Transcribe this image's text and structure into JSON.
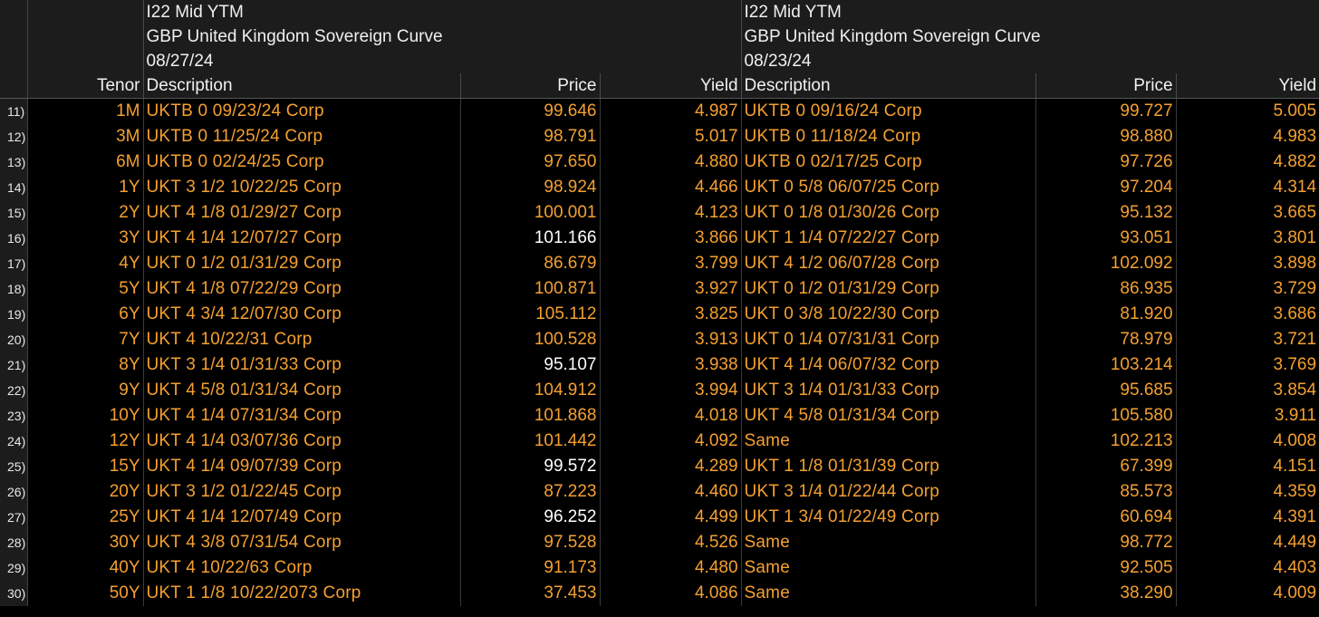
{
  "left_curve": {
    "title": "I22 Mid YTM",
    "subtitle": "GBP United Kingdom Sovereign Curve",
    "date": "08/27/24"
  },
  "right_curve": {
    "title": "I22 Mid YTM",
    "subtitle": "GBP United Kingdom Sovereign Curve",
    "date": "08/23/24"
  },
  "columns": {
    "tenor": "Tenor",
    "description_left": "Description",
    "price_left": "Price",
    "yield_left": "Yield",
    "description_right": "Description",
    "price_right": "Price",
    "yield_right": "Yield"
  },
  "colors": {
    "orange": "#f5a030",
    "white": "#ffffff",
    "header_bg": "#1c1c1c"
  },
  "rows": [
    {
      "num": "11)",
      "tenor": "1M",
      "ldesc": "UKTB 0 09/23/24 Corp",
      "lprice": "99.646",
      "lprice_white": false,
      "lyield": "4.987",
      "rdesc": "UKTB 0 09/16/24 Corp",
      "rprice": "99.727",
      "ryield": "5.005"
    },
    {
      "num": "12)",
      "tenor": "3M",
      "ldesc": "UKTB 0 11/25/24 Corp",
      "lprice": "98.791",
      "lprice_white": false,
      "lyield": "5.017",
      "rdesc": "UKTB 0 11/18/24 Corp",
      "rprice": "98.880",
      "ryield": "4.983"
    },
    {
      "num": "13)",
      "tenor": "6M",
      "ldesc": "UKTB 0 02/24/25 Corp",
      "lprice": "97.650",
      "lprice_white": false,
      "lyield": "4.880",
      "rdesc": "UKTB 0 02/17/25 Corp",
      "rprice": "97.726",
      "ryield": "4.882"
    },
    {
      "num": "14)",
      "tenor": "1Y",
      "ldesc": "UKT 3  1/2  10/22/25 Corp",
      "lprice": "98.924",
      "lprice_white": false,
      "lyield": "4.466",
      "rdesc": "UKT 0  5/8  06/07/25 Corp",
      "rprice": "97.204",
      "ryield": "4.314"
    },
    {
      "num": "15)",
      "tenor": "2Y",
      "ldesc": "UKT 4  1/8  01/29/27 Corp",
      "lprice": "100.001",
      "lprice_white": false,
      "lyield": "4.123",
      "rdesc": "UKT 0  1/8  01/30/26 Corp",
      "rprice": "95.132",
      "ryield": "3.665"
    },
    {
      "num": "16)",
      "tenor": "3Y",
      "ldesc": "UKT 4  1/4  12/07/27 Corp",
      "lprice": "101.166",
      "lprice_white": true,
      "lyield": "3.866",
      "rdesc": "UKT 1  1/4  07/22/27 Corp",
      "rprice": "93.051",
      "ryield": "3.801"
    },
    {
      "num": "17)",
      "tenor": "4Y",
      "ldesc": "UKT 0  1/2  01/31/29 Corp",
      "lprice": "86.679",
      "lprice_white": false,
      "lyield": "3.799",
      "rdesc": "UKT 4  1/2  06/07/28 Corp",
      "rprice": "102.092",
      "ryield": "3.898"
    },
    {
      "num": "18)",
      "tenor": "5Y",
      "ldesc": "UKT 4  1/8  07/22/29 Corp",
      "lprice": "100.871",
      "lprice_white": false,
      "lyield": "3.927",
      "rdesc": "UKT 0  1/2  01/31/29 Corp",
      "rprice": "86.935",
      "ryield": "3.729"
    },
    {
      "num": "19)",
      "tenor": "6Y",
      "ldesc": "UKT 4  3/4  12/07/30 Corp",
      "lprice": "105.112",
      "lprice_white": false,
      "lyield": "3.825",
      "rdesc": "UKT 0  3/8  10/22/30 Corp",
      "rprice": "81.920",
      "ryield": "3.686"
    },
    {
      "num": "20)",
      "tenor": "7Y",
      "ldesc": "UKT 4 10/22/31 Corp",
      "lprice": "100.528",
      "lprice_white": false,
      "lyield": "3.913",
      "rdesc": "UKT 0  1/4  07/31/31 Corp",
      "rprice": "78.979",
      "ryield": "3.721"
    },
    {
      "num": "21)",
      "tenor": "8Y",
      "ldesc": "UKT 3  1/4  01/31/33 Corp",
      "lprice": "95.107",
      "lprice_white": true,
      "lyield": "3.938",
      "rdesc": "UKT 4  1/4  06/07/32 Corp",
      "rprice": "103.214",
      "ryield": "3.769"
    },
    {
      "num": "22)",
      "tenor": "9Y",
      "ldesc": "UKT 4  5/8  01/31/34 Corp",
      "lprice": "104.912",
      "lprice_white": false,
      "lyield": "3.994",
      "rdesc": "UKT 3  1/4  01/31/33 Corp",
      "rprice": "95.685",
      "ryield": "3.854"
    },
    {
      "num": "23)",
      "tenor": "10Y",
      "ldesc": "UKT 4  1/4  07/31/34 Corp",
      "lprice": "101.868",
      "lprice_white": false,
      "lyield": "4.018",
      "rdesc": "UKT 4  5/8  01/31/34 Corp",
      "rprice": "105.580",
      "ryield": "3.911"
    },
    {
      "num": "24)",
      "tenor": "12Y",
      "ldesc": "UKT 4  1/4  03/07/36 Corp",
      "lprice": "101.442",
      "lprice_white": false,
      "lyield": "4.092",
      "rdesc": "Same",
      "rprice": "102.213",
      "ryield": "4.008"
    },
    {
      "num": "25)",
      "tenor": "15Y",
      "ldesc": "UKT 4  1/4  09/07/39 Corp",
      "lprice": "99.572",
      "lprice_white": true,
      "lyield": "4.289",
      "rdesc": "UKT 1  1/8  01/31/39 Corp",
      "rprice": "67.399",
      "ryield": "4.151"
    },
    {
      "num": "26)",
      "tenor": "20Y",
      "ldesc": "UKT 3  1/2  01/22/45 Corp",
      "lprice": "87.223",
      "lprice_white": false,
      "lyield": "4.460",
      "rdesc": "UKT 3  1/4  01/22/44 Corp",
      "rprice": "85.573",
      "ryield": "4.359"
    },
    {
      "num": "27)",
      "tenor": "25Y",
      "ldesc": "UKT 4  1/4  12/07/49 Corp",
      "lprice": "96.252",
      "lprice_white": true,
      "lyield": "4.499",
      "rdesc": "UKT 1  3/4  01/22/49 Corp",
      "rprice": "60.694",
      "ryield": "4.391"
    },
    {
      "num": "28)",
      "tenor": "30Y",
      "ldesc": "UKT 4  3/8  07/31/54 Corp",
      "lprice": "97.528",
      "lprice_white": false,
      "lyield": "4.526",
      "rdesc": "Same",
      "rprice": "98.772",
      "ryield": "4.449"
    },
    {
      "num": "29)",
      "tenor": "40Y",
      "ldesc": "UKT 4 10/22/63 Corp",
      "lprice": "91.173",
      "lprice_white": false,
      "lyield": "4.480",
      "rdesc": "Same",
      "rprice": "92.505",
      "ryield": "4.403"
    },
    {
      "num": "30)",
      "tenor": "50Y",
      "ldesc": "UKT 1  1/8  10/22/2073 Corp",
      "lprice": "37.453",
      "lprice_white": false,
      "lyield": "4.086",
      "rdesc": "Same",
      "rprice": "38.290",
      "ryield": "4.009"
    }
  ]
}
